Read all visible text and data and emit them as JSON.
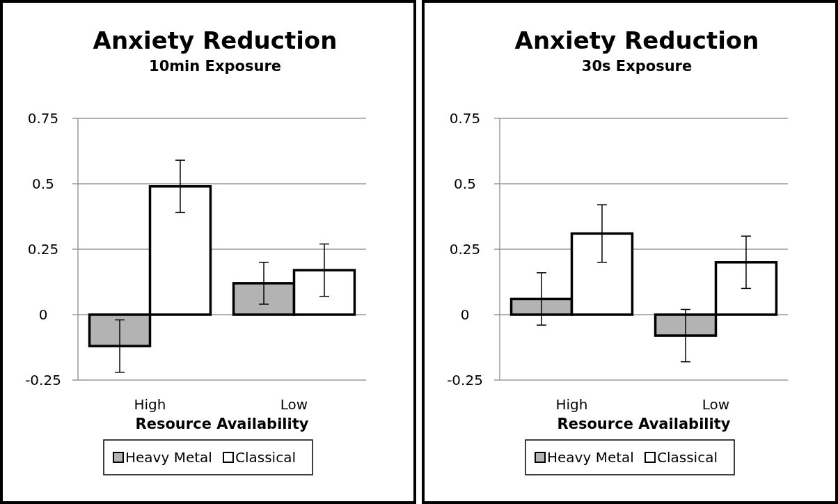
{
  "chart_data": [
    {
      "type": "bar",
      "title": "Anxiety Reduction",
      "subtitle": "10min Exposure",
      "xlabel": "Resource Availability",
      "categories": [
        "High",
        "Low"
      ],
      "series": [
        {
          "name": "Heavy Metal",
          "color": "#b3b3b3",
          "values": [
            -0.12,
            0.12
          ],
          "errors": [
            0.1,
            0.08
          ]
        },
        {
          "name": "Classical",
          "color": "#ffffff",
          "values": [
            0.49,
            0.17
          ],
          "errors": [
            0.1,
            0.1
          ]
        }
      ],
      "ylim": [
        -0.25,
        0.75
      ],
      "yticks": [
        -0.25,
        0,
        0.25,
        0.5,
        0.75
      ],
      "grid": "y",
      "legend": "bottom"
    },
    {
      "type": "bar",
      "title": "Anxiety Reduction",
      "subtitle": "30s Exposure",
      "xlabel": "Resource Availability",
      "categories": [
        "High",
        "Low"
      ],
      "series": [
        {
          "name": "Heavy Metal",
          "color": "#b3b3b3",
          "values": [
            0.06,
            -0.08
          ],
          "errors": [
            0.1,
            0.1
          ]
        },
        {
          "name": "Classical",
          "color": "#ffffff",
          "values": [
            0.31,
            0.2
          ],
          "errors": [
            0.11,
            0.1
          ]
        }
      ],
      "ylim": [
        -0.25,
        0.75
      ],
      "yticks": [
        -0.25,
        0,
        0.25,
        0.5,
        0.75
      ],
      "grid": "y",
      "legend": "bottom"
    }
  ]
}
